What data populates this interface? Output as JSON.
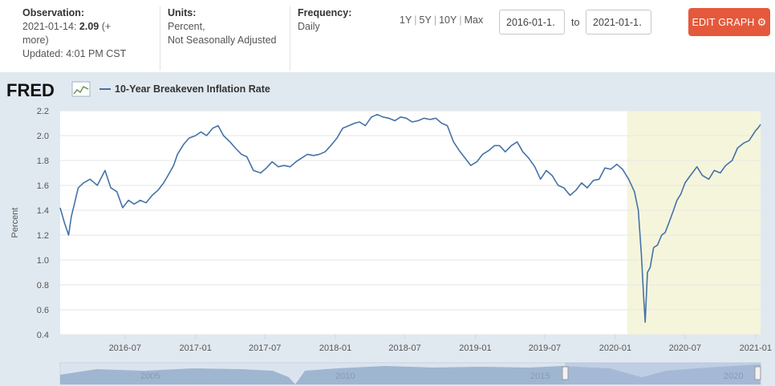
{
  "header": {
    "observation_label": "Observation:",
    "observation_date": "2021-01-14:",
    "observation_value": "2.09",
    "observation_more": "(+",
    "observation_more2": "more)",
    "updated": "Updated: 4:01 PM CST",
    "units_label": "Units:",
    "units_line1": "Percent,",
    "units_line2": "Not Seasonally Adjusted",
    "frequency_label": "Frequency:",
    "frequency_value": "Daily",
    "range_1y": "1Y",
    "range_5y": "5Y",
    "range_10y": "10Y",
    "range_max": "Max",
    "date_from": "2016-01-1․",
    "date_to": "2021-01-1․",
    "to_label": "to",
    "edit_button": "EDIT GRAPH",
    "gear_glyph": "⚙"
  },
  "logo": {
    "text": "FRED"
  },
  "colors": {
    "line": "#4572a7",
    "recession": "#f5f5dc",
    "button": "#e4593b",
    "background": "#e1e9f0"
  },
  "chart_data": {
    "type": "line",
    "title": "",
    "xlabel": "",
    "ylabel": "Percent",
    "ylim": [
      0.4,
      2.2
    ],
    "yticks": [
      "0.4",
      "0.6",
      "0.8",
      "1.0",
      "1.2",
      "1.4",
      "1.6",
      "1.8",
      "2.0",
      "2.2"
    ],
    "xticks": [
      "2016-07",
      "2017-01",
      "2017-07",
      "2018-01",
      "2018-07",
      "2019-01",
      "2019-07",
      "2020-01",
      "2020-07",
      "2021-01"
    ],
    "xrange": [
      "2016-01-14",
      "2021-01-14"
    ],
    "grid": true,
    "legend_position": "top-left",
    "recession": {
      "start": "2020-02-01",
      "end": "2021-01-14"
    },
    "series": [
      {
        "name": "10-Year Breakeven Inflation Rate",
        "x": [
          "2016-01-14",
          "2016-01-25",
          "2016-02-05",
          "2016-02-12",
          "2016-02-20",
          "2016-03-01",
          "2016-03-15",
          "2016-04-01",
          "2016-04-20",
          "2016-05-10",
          "2016-05-25",
          "2016-06-10",
          "2016-06-25",
          "2016-07-10",
          "2016-07-25",
          "2016-08-10",
          "2016-08-25",
          "2016-09-10",
          "2016-09-25",
          "2016-10-10",
          "2016-10-25",
          "2016-11-05",
          "2016-11-15",
          "2016-12-01",
          "2016-12-15",
          "2017-01-01",
          "2017-01-15",
          "2017-01-30",
          "2017-02-15",
          "2017-03-01",
          "2017-03-15",
          "2017-04-01",
          "2017-04-15",
          "2017-05-01",
          "2017-05-15",
          "2017-06-01",
          "2017-06-20",
          "2017-07-05",
          "2017-07-20",
          "2017-08-05",
          "2017-08-20",
          "2017-09-05",
          "2017-09-20",
          "2017-10-05",
          "2017-10-20",
          "2017-11-05",
          "2017-11-20",
          "2017-12-05",
          "2017-12-20",
          "2018-01-05",
          "2018-01-20",
          "2018-02-05",
          "2018-02-20",
          "2018-03-05",
          "2018-03-20",
          "2018-04-05",
          "2018-04-20",
          "2018-05-05",
          "2018-05-20",
          "2018-06-05",
          "2018-06-20",
          "2018-07-05",
          "2018-07-20",
          "2018-08-05",
          "2018-08-20",
          "2018-09-05",
          "2018-09-20",
          "2018-10-05",
          "2018-10-20",
          "2018-11-05",
          "2018-11-20",
          "2018-12-05",
          "2018-12-20",
          "2019-01-05",
          "2019-01-20",
          "2019-02-05",
          "2019-02-20",
          "2019-03-05",
          "2019-03-20",
          "2019-04-05",
          "2019-04-20",
          "2019-05-05",
          "2019-05-20",
          "2019-06-05",
          "2019-06-20",
          "2019-07-05",
          "2019-07-20",
          "2019-08-05",
          "2019-08-20",
          "2019-09-05",
          "2019-09-20",
          "2019-10-05",
          "2019-10-20",
          "2019-11-05",
          "2019-11-20",
          "2019-12-05",
          "2019-12-20",
          "2020-01-05",
          "2020-01-20",
          "2020-02-05",
          "2020-02-20",
          "2020-03-01",
          "2020-03-09",
          "2020-03-15",
          "2020-03-19",
          "2020-03-25",
          "2020-04-01",
          "2020-04-10",
          "2020-04-20",
          "2020-05-01",
          "2020-05-10",
          "2020-05-20",
          "2020-06-01",
          "2020-06-10",
          "2020-06-20",
          "2020-07-01",
          "2020-07-15",
          "2020-08-01",
          "2020-08-15",
          "2020-09-01",
          "2020-09-15",
          "2020-10-01",
          "2020-10-15",
          "2020-11-01",
          "2020-11-15",
          "2020-12-01",
          "2020-12-15",
          "2021-01-01",
          "2021-01-07",
          "2021-01-14"
        ],
        "values": [
          1.42,
          1.3,
          1.2,
          1.35,
          1.45,
          1.58,
          1.62,
          1.65,
          1.6,
          1.72,
          1.58,
          1.55,
          1.42,
          1.48,
          1.45,
          1.48,
          1.46,
          1.52,
          1.56,
          1.62,
          1.7,
          1.76,
          1.85,
          1.93,
          1.98,
          2.0,
          2.03,
          2.0,
          2.06,
          2.08,
          2.0,
          1.95,
          1.9,
          1.85,
          1.83,
          1.72,
          1.7,
          1.74,
          1.79,
          1.75,
          1.76,
          1.75,
          1.79,
          1.82,
          1.85,
          1.84,
          1.85,
          1.87,
          1.92,
          1.98,
          2.06,
          2.08,
          2.1,
          2.11,
          2.08,
          2.15,
          2.17,
          2.15,
          2.14,
          2.12,
          2.15,
          2.14,
          2.11,
          2.12,
          2.14,
          2.13,
          2.14,
          2.1,
          2.08,
          1.95,
          1.88,
          1.82,
          1.76,
          1.79,
          1.85,
          1.88,
          1.92,
          1.92,
          1.87,
          1.92,
          1.95,
          1.87,
          1.82,
          1.75,
          1.65,
          1.72,
          1.68,
          1.6,
          1.58,
          1.52,
          1.56,
          1.62,
          1.58,
          1.64,
          1.65,
          1.74,
          1.73,
          1.77,
          1.73,
          1.65,
          1.55,
          1.4,
          1.05,
          0.7,
          0.5,
          0.9,
          0.94,
          1.1,
          1.12,
          1.2,
          1.22,
          1.3,
          1.4,
          1.48,
          1.53,
          1.62,
          1.68,
          1.75,
          1.68,
          1.65,
          1.72,
          1.7,
          1.76,
          1.8,
          1.9,
          1.94,
          1.96,
          2.04,
          2.06,
          2.09
        ]
      }
    ]
  },
  "navigator": {
    "labels": [
      "2005",
      "2010",
      "2015",
      "2020"
    ]
  }
}
